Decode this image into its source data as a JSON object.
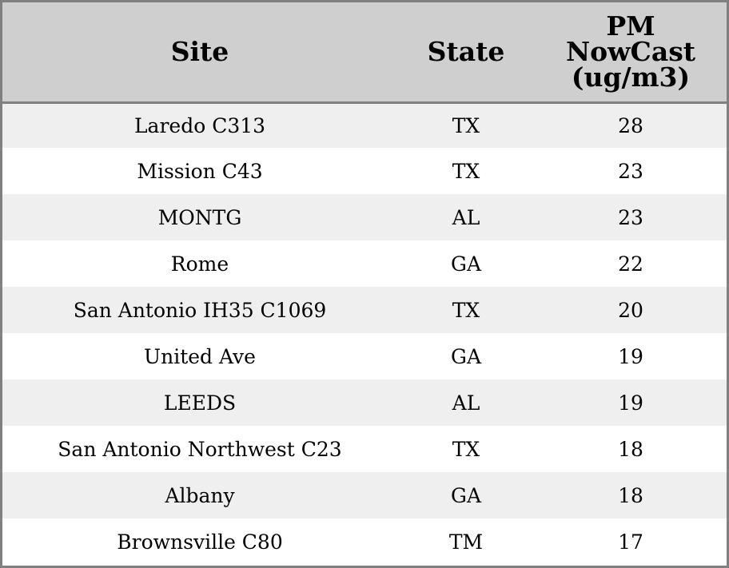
{
  "chart_data": {
    "type": "table",
    "columns": [
      "Site",
      "State",
      "PM NowCast (ug/m3)"
    ],
    "header_lines": {
      "site": [
        "Site"
      ],
      "state": [
        "State"
      ],
      "pm": [
        "PM",
        "NowCast",
        "(ug/m3)"
      ]
    },
    "rows": [
      {
        "site": "Laredo C313",
        "state": "TX",
        "pm": 28
      },
      {
        "site": "Mission C43",
        "state": "TX",
        "pm": 23
      },
      {
        "site": "MONTG",
        "state": "AL",
        "pm": 23
      },
      {
        "site": "Rome",
        "state": "GA",
        "pm": 22
      },
      {
        "site": "San Antonio IH35 C1069",
        "state": "TX",
        "pm": 20
      },
      {
        "site": "United Ave",
        "state": "GA",
        "pm": 19
      },
      {
        "site": "LEEDS",
        "state": "AL",
        "pm": 19
      },
      {
        "site": "San Antonio Northwest C23",
        "state": "TX",
        "pm": 18
      },
      {
        "site": "Albany",
        "state": "GA",
        "pm": 18
      },
      {
        "site": "Brownsville C80",
        "state": "TM",
        "pm": 17
      }
    ],
    "colors": {
      "header_bg": "#cfcfcf",
      "row_alt_bg": "#efefef",
      "row_bg": "#ffffff",
      "border": "#808080"
    }
  }
}
